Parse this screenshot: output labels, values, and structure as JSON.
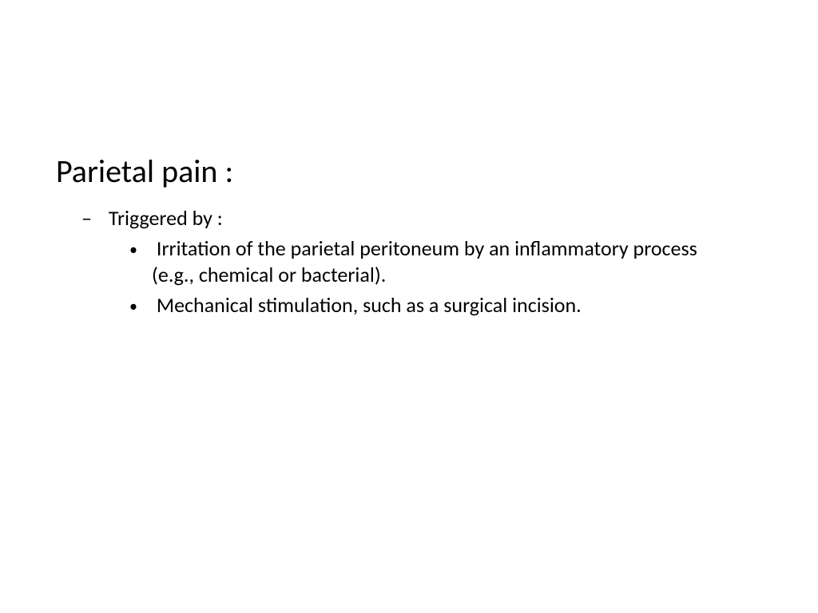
{
  "slide": {
    "title": "Parietal pain :",
    "level1": {
      "text": "Triggered by :"
    },
    "level2": [
      {
        "text": "Irritation of the parietal peritoneum by an inflammatory process (e.g., chemical or bacterial)."
      },
      {
        "text": "Mechanical stimulation, such as a surgical incision."
      }
    ],
    "styling": {
      "background_color": "#ffffff",
      "text_color": "#000000",
      "title_fontsize": 40,
      "body_fontsize": 26,
      "font_family": "Calibri"
    }
  }
}
